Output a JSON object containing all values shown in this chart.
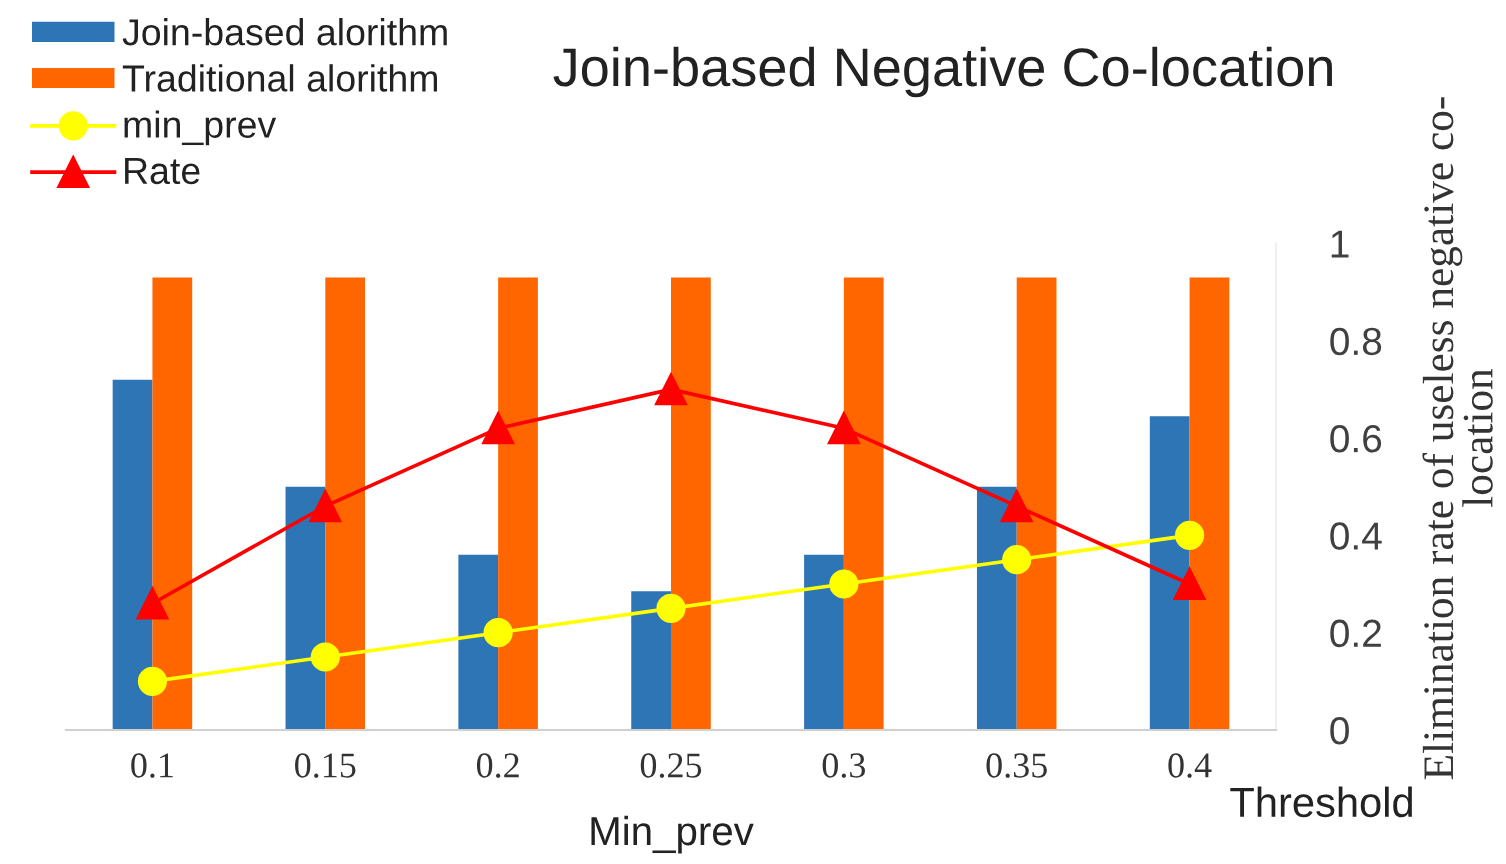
{
  "chart_data": {
    "type": "bar",
    "title": "Join-based Negative Co-location",
    "xlabel": "Min_prev",
    "ylabel": "Elimination rate of useless negative co-\nlocation",
    "categories": [
      "0.1",
      "0.15",
      "0.2",
      "0.25",
      "0.3",
      "0.35",
      "0.4"
    ],
    "ylim": [
      0,
      1
    ],
    "yticks": [
      0,
      0.2,
      0.4,
      0.6,
      0.8,
      1
    ],
    "grid": false,
    "legend": "top left",
    "annotations": [
      "Threshold"
    ],
    "series": [
      {
        "name": "Join-based alorithm",
        "color": "#2e75b6",
        "values": [
          0.72,
          0.5,
          0.36,
          0.285,
          0.36,
          0.5,
          0.645
        ]
      },
      {
        "name": "Traditional alorithm",
        "color": "#ff6600",
        "values": [
          0.93,
          0.93,
          0.93,
          0.93,
          0.93,
          0.93,
          0.93
        ]
      },
      {
        "name": "min_prev",
        "type": "line",
        "color": "#ffff00",
        "marker": "circle",
        "line_style": "solid",
        "values": [
          0.1,
          0.15,
          0.2,
          0.25,
          0.3,
          0.35,
          0.4
        ]
      },
      {
        "name": "Rate",
        "type": "line",
        "color": "#ff0000",
        "marker": "triangle",
        "line_style": "solid",
        "values": [
          0.26,
          0.46,
          0.62,
          0.7,
          0.62,
          0.46,
          0.3
        ]
      }
    ]
  }
}
